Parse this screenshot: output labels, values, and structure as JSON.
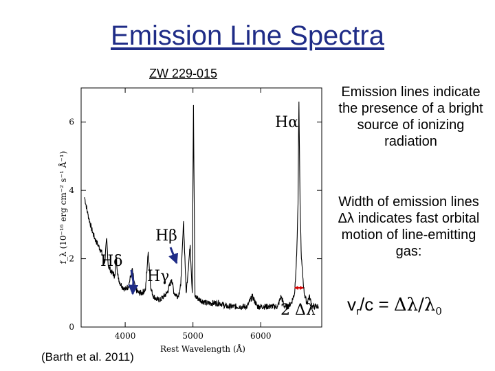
{
  "slide": {
    "title": "Emission Line Spectra",
    "plot_label": "ZW 229-015",
    "citation": "(Barth et al. 2011)",
    "notes": [
      "Emission lines indicate the presence of a bright source of ionizing radiation",
      "Width of emission lines Δλ indicates fast orbital motion of line-emitting gas:"
    ],
    "formula": {
      "v": "v",
      "r": "r",
      "rest": "/c = ",
      "dl": "Δλ/λ",
      "zero": "0"
    }
  },
  "chart_data": {
    "type": "line",
    "title": "",
    "xlabel": "Rest Wavelength (Å)",
    "ylabel": "f_λ (10⁻¹⁶ erg cm⁻² s⁻¹ Å⁻¹)",
    "xlim": [
      3350,
      6900
    ],
    "ylim": [
      0,
      7
    ],
    "x_ticks": [
      "4000",
      "5000",
      "6000"
    ],
    "y_ticks": [
      "0",
      "2",
      "4",
      "6"
    ],
    "grid": false,
    "series": [
      {
        "name": "",
        "x": [
          3400,
          3450,
          3500,
          3550,
          3600,
          3650,
          3700,
          3727,
          3750,
          3800,
          3850,
          3869,
          3900,
          3950,
          4000,
          4050,
          4102,
          4150,
          4200,
          4250,
          4300,
          4340,
          4380,
          4420,
          4470,
          4520,
          4570,
          4620,
          4686,
          4720,
          4780,
          4820,
          4861,
          4900,
          4959,
          4990,
          5007,
          5030,
          5100,
          5200,
          5300,
          5400,
          5500,
          5600,
          5700,
          5800,
          5876,
          5950,
          6050,
          6150,
          6250,
          6300,
          6350,
          6400,
          6450,
          6500,
          6530,
          6550,
          6563,
          6580,
          6600,
          6640,
          6680,
          6717,
          6731,
          6760,
          6800,
          6850
        ],
        "y": [
          3.8,
          3.3,
          2.9,
          2.6,
          2.4,
          2.2,
          1.9,
          2.6,
          1.8,
          1.6,
          1.5,
          2.0,
          1.4,
          1.2,
          1.1,
          1.2,
          1.7,
          1.1,
          1.0,
          1.0,
          1.1,
          2.2,
          1.1,
          0.9,
          0.8,
          0.8,
          0.9,
          1.0,
          1.4,
          1.0,
          0.9,
          1.2,
          3.1,
          1.0,
          2.4,
          1.0,
          6.5,
          0.9,
          0.8,
          0.7,
          0.7,
          0.7,
          0.6,
          0.6,
          0.6,
          0.6,
          0.9,
          0.6,
          0.6,
          0.6,
          0.6,
          0.9,
          0.6,
          0.6,
          0.7,
          1.0,
          2.1,
          3.6,
          6.6,
          3.6,
          2.0,
          1.0,
          0.7,
          0.9,
          0.8,
          0.6,
          0.6,
          0.6
        ]
      }
    ],
    "annotations": [
      {
        "label": "Hα",
        "x": 6563
      },
      {
        "label": "Hβ",
        "x": 4861
      },
      {
        "label": "Hγ",
        "x": 4340
      },
      {
        "label": "Hδ",
        "x": 4102
      },
      {
        "label": "2 Δλ",
        "x": 6563,
        "x_start": 6500,
        "x_end": 6630
      }
    ],
    "colors": {
      "arrow": "#1f2c87",
      "width_marker": "#d40000",
      "title": "#1f2c87"
    }
  }
}
